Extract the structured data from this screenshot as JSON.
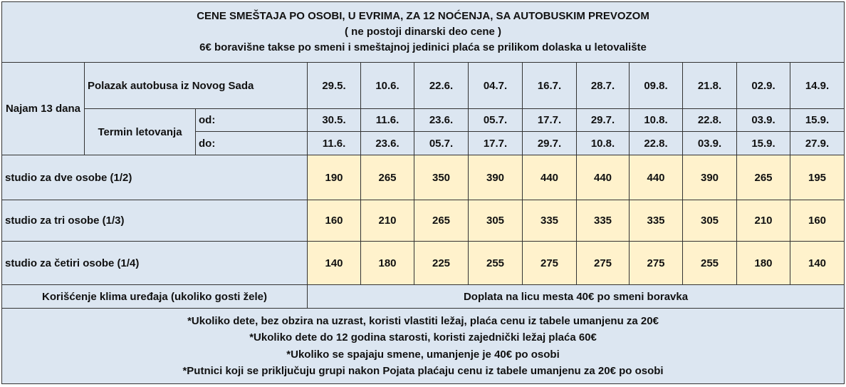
{
  "header": {
    "title": "CENE SMEŠTAJA PO OSOBI, U EVRIMA, ZA 12 NOĆENJA, SA AUTOBUSKIM PREVOZOM",
    "note": "( ne postoji dinarski deo cene )",
    "tax_note": "6€ boravišne takse po smeni i smeštajnoj jedinici plaća se prilikom dolaska u letovalište"
  },
  "labels": {
    "najam": "Najam 13 dana",
    "polazak": "Polazak autobusa iz  Novog Sada",
    "termin": "Termin letovanja",
    "od": "od:",
    "do": "do:"
  },
  "departures": [
    "29.5.",
    "10.6.",
    "22.6.",
    "04.7.",
    "16.7.",
    "28.7.",
    "09.8.",
    "21.8.",
    "02.9.",
    "14.9."
  ],
  "stay_from": [
    "30.5.",
    "11.6.",
    "23.6.",
    "05.7.",
    "17.7.",
    "29.7.",
    "10.8.",
    "22.8.",
    "03.9.",
    "15.9."
  ],
  "stay_to": [
    "11.6.",
    "23.6.",
    "05.7.",
    "17.7.",
    "29.7.",
    "10.8.",
    "22.8.",
    "03.9.",
    "15.9.",
    "27.9."
  ],
  "rooms": [
    {
      "label": "studio za dve osobe (1/2)",
      "prices": [
        "190",
        "265",
        "350",
        "390",
        "440",
        "440",
        "440",
        "390",
        "265",
        "195"
      ]
    },
    {
      "label": "studio za tri osobe (1/3)",
      "prices": [
        "160",
        "210",
        "265",
        "305",
        "335",
        "335",
        "335",
        "305",
        "210",
        "160"
      ]
    },
    {
      "label": "studio za četiri osobe (1/4)",
      "prices": [
        "140",
        "180",
        "225",
        "255",
        "275",
        "275",
        "275",
        "255",
        "180",
        "140"
      ]
    }
  ],
  "klima": {
    "label": "Korišćenje klima uređaja (ukoliko gosti žele)",
    "value": "Doplata na licu mesta 40€ po smeni boravka"
  },
  "footnotes": [
    "*Ukoliko dete, bez obzira na uzrast, koristi vlastiti ležaj, plaća cenu iz tabele umanjenu za 20€",
    "*Ukoliko dete do 12 godina starosti, koristi zajednički ležaj plaća  60€",
    "*Ukoliko se spajaju smene, umanjenje je 40€ po osobi",
    "*Putnici koji se priključuju grupi nakon Pojata plaćaju cenu iz tabele umanjenu za 20€ po osobi"
  ]
}
